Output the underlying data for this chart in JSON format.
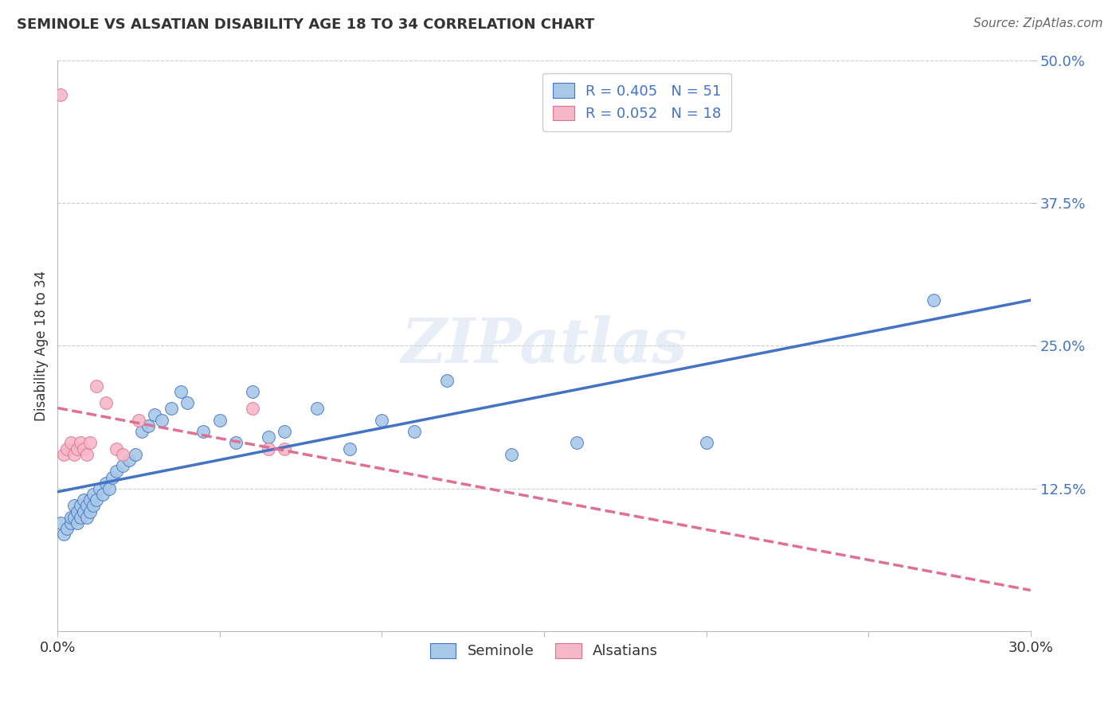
{
  "title": "SEMINOLE VS ALSATIAN DISABILITY AGE 18 TO 34 CORRELATION CHART",
  "source": "Source: ZipAtlas.com",
  "ylabel": "Disability Age 18 to 34",
  "xlim": [
    0.0,
    0.3
  ],
  "ylim": [
    0.0,
    0.5
  ],
  "xticks": [
    0.0,
    0.05,
    0.1,
    0.15,
    0.2,
    0.25,
    0.3
  ],
  "xticklabels": [
    "0.0%",
    "",
    "",
    "",
    "",
    "",
    "30.0%"
  ],
  "ytick_positions": [
    0.125,
    0.25,
    0.375,
    0.5
  ],
  "ytick_labels": [
    "12.5%",
    "25.0%",
    "37.5%",
    "50.0%"
  ],
  "seminole_x": [
    0.001,
    0.002,
    0.003,
    0.004,
    0.004,
    0.005,
    0.005,
    0.006,
    0.006,
    0.007,
    0.007,
    0.008,
    0.008,
    0.009,
    0.009,
    0.01,
    0.01,
    0.011,
    0.011,
    0.012,
    0.013,
    0.014,
    0.015,
    0.016,
    0.017,
    0.018,
    0.02,
    0.022,
    0.024,
    0.026,
    0.028,
    0.03,
    0.032,
    0.035,
    0.038,
    0.04,
    0.045,
    0.05,
    0.055,
    0.06,
    0.065,
    0.07,
    0.08,
    0.09,
    0.1,
    0.11,
    0.12,
    0.14,
    0.16,
    0.2,
    0.27
  ],
  "seminole_y": [
    0.095,
    0.085,
    0.09,
    0.095,
    0.1,
    0.1,
    0.11,
    0.095,
    0.105,
    0.1,
    0.11,
    0.105,
    0.115,
    0.1,
    0.11,
    0.105,
    0.115,
    0.11,
    0.12,
    0.115,
    0.125,
    0.12,
    0.13,
    0.125,
    0.135,
    0.14,
    0.145,
    0.15,
    0.155,
    0.175,
    0.18,
    0.19,
    0.185,
    0.195,
    0.21,
    0.2,
    0.175,
    0.185,
    0.165,
    0.21,
    0.17,
    0.175,
    0.195,
    0.16,
    0.185,
    0.175,
    0.22,
    0.155,
    0.165,
    0.165,
    0.29
  ],
  "alsatian_x": [
    0.001,
    0.002,
    0.003,
    0.004,
    0.005,
    0.006,
    0.007,
    0.008,
    0.009,
    0.01,
    0.012,
    0.015,
    0.018,
    0.02,
    0.025,
    0.06,
    0.065,
    0.07
  ],
  "alsatian_y": [
    0.47,
    0.155,
    0.16,
    0.165,
    0.155,
    0.16,
    0.165,
    0.16,
    0.155,
    0.165,
    0.215,
    0.2,
    0.16,
    0.155,
    0.185,
    0.195,
    0.16,
    0.16
  ],
  "seminole_color": "#a8c8e8",
  "alsatian_color": "#f5b8c8",
  "seminole_line_color": "#4472c4",
  "alsatian_line_color": "#e07090",
  "R_seminole": 0.405,
  "N_seminole": 51,
  "R_alsatian": 0.052,
  "N_alsatian": 18,
  "watermark_text": "ZIPatlas",
  "grid_color": "#cccccc",
  "background_color": "#ffffff",
  "title_color": "#333333",
  "source_color": "#666666",
  "ylabel_color": "#333333",
  "tick_color": "#4472c4",
  "xtick_color": "#333333"
}
